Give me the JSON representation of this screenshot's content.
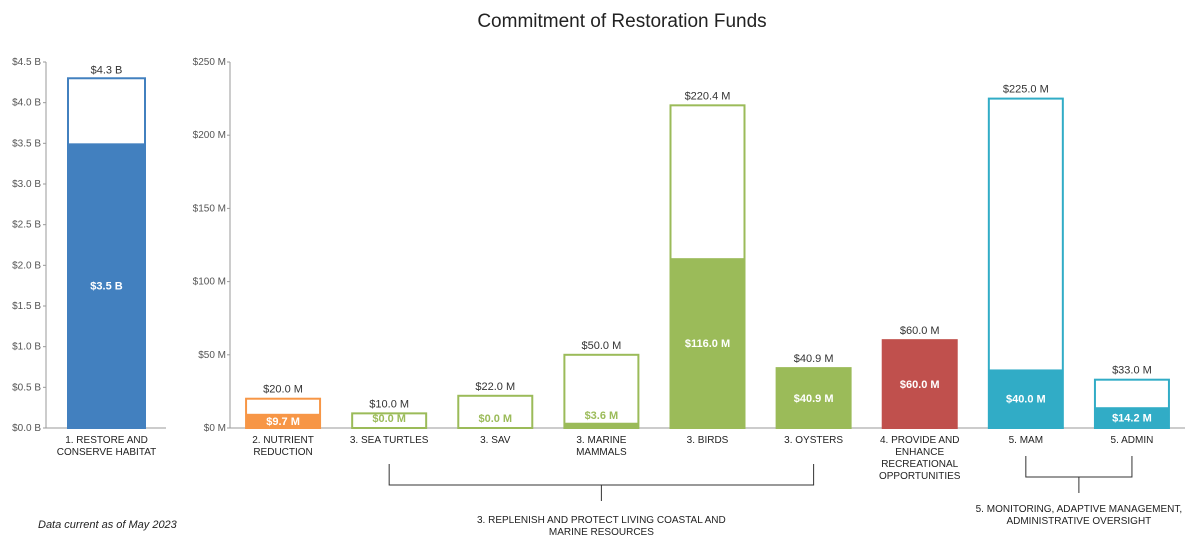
{
  "chart_data": [
    {
      "type": "bar",
      "title": "Commitment of Restoration Funds",
      "footnote": "Data current as of May 2023",
      "yticks": [
        "$0.0 B",
        "$0.5 B",
        "$1.0 B",
        "$1.5 B",
        "$2.0 B",
        "$2.5 B",
        "$3.0 B",
        "$3.5 B",
        "$4.0 B",
        "$4.5 B"
      ],
      "ylim": [
        0,
        4.5
      ],
      "units": "billions USD",
      "categories": [
        "1. RESTORE AND CONSERVE HABITAT"
      ],
      "series": [
        {
          "name": "",
          "values": [
            4.3
          ],
          "labels": [
            "$4.3 B"
          ]
        },
        {
          "name": "",
          "values": [
            3.5
          ],
          "labels": [
            "$3.5 B"
          ]
        }
      ],
      "colors": [
        "#4280bf"
      ]
    },
    {
      "type": "bar",
      "yticks": [
        "$0 M",
        "$50 M",
        "$100 M",
        "$150 M",
        "$200 M",
        "$250 M"
      ],
      "ylim": [
        0,
        250
      ],
      "units": "millions USD",
      "categories": [
        "2. NUTRIENT REDUCTION",
        "3. SEA TURTLES",
        "3. SAV",
        "3. MARINE MAMMALS",
        "3. BIRDS",
        "3. OYSTERS",
        "4. PROVIDE AND ENHANCE RECREATIONAL OPPORTUNITIES",
        "5. MAM",
        "5. ADMIN"
      ],
      "series": [
        {
          "name": "",
          "values": [
            20.0,
            10.0,
            22.0,
            50.0,
            220.4,
            40.9,
            60.0,
            225.0,
            33.0
          ],
          "labels": [
            "$20.0 M",
            "$10.0 M",
            "$22.0 M",
            "$50.0 M",
            "$220.4 M",
            "$40.9 M",
            "$60.0 M",
            "$225.0 M",
            "$33.0 M"
          ]
        },
        {
          "name": "",
          "values": [
            9.7,
            0.0,
            0.0,
            3.6,
            116.0,
            40.9,
            60.0,
            40.0,
            14.2
          ],
          "labels": [
            "$9.7 M",
            "$0.0 M",
            "$0.0 M",
            "$3.6 M",
            "$116.0 M",
            "$40.9 M",
            "$60.0 M",
            "$40.0 M",
            "$14.2 M"
          ]
        }
      ],
      "colors": [
        "#f79646",
        "#9bbb59",
        "#9bbb59",
        "#9bbb59",
        "#9bbb59",
        "#9bbb59",
        "#c0504d",
        "#31acc6",
        "#31acc6"
      ],
      "groups": [
        {
          "label": "3. REPLENISH AND PROTECT LIVING COASTAL AND MARINE RESOURCES",
          "from": 1,
          "to": 5
        },
        {
          "label": "5. MONITORING, ADAPTIVE MANAGEMENT, ADMINISTRATIVE OVERSIGHT",
          "from": 7,
          "to": 8
        }
      ]
    }
  ]
}
